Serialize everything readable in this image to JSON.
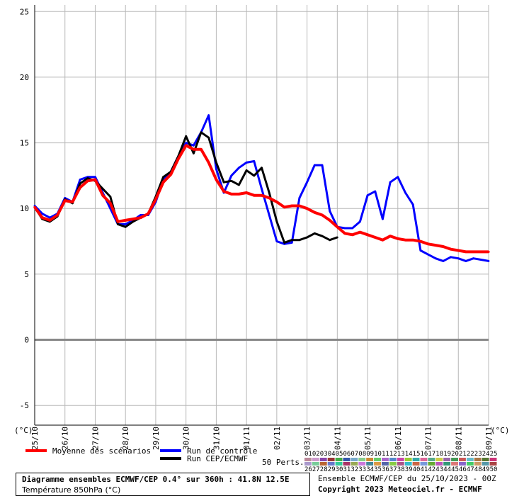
{
  "chart_data": {
    "type": "line",
    "title": "Diagramme ensembles ECMWF/CEP 0.4° sur 360h : 41.8N 12.5E",
    "subtitle": "Température 850hPa (°C)",
    "ylabel": "(°C)",
    "ylabel_right": "(°C)",
    "ylim": [
      -6.5,
      25.5
    ],
    "yticks": [
      25,
      20,
      15,
      10,
      5,
      0,
      -5
    ],
    "xlim": [
      0,
      360
    ],
    "xtick_labels": [
      "25/10",
      "26/10",
      "27/10",
      "28/10",
      "29/10",
      "30/10",
      "31/10",
      "01/11",
      "02/11",
      "03/11",
      "04/11",
      "05/11",
      "06/11",
      "07/11",
      "08/11",
      "09/11"
    ],
    "xtick_hours": [
      0,
      24,
      48,
      72,
      96,
      120,
      144,
      168,
      192,
      216,
      240,
      264,
      288,
      312,
      336,
      360
    ],
    "grid": true,
    "series": [
      {
        "name": "Moyenne des scénarios",
        "color": "#ff0000",
        "x": [
          0,
          6,
          12,
          18,
          24,
          30,
          36,
          42,
          48,
          54,
          60,
          66,
          72,
          78,
          84,
          90,
          96,
          102,
          108,
          114,
          120,
          126,
          132,
          138,
          144,
          150,
          156,
          162,
          168,
          174,
          180,
          186,
          192,
          198,
          204,
          210,
          216,
          222,
          228,
          234,
          240,
          246,
          252,
          258,
          264,
          270,
          276,
          282,
          288,
          294,
          300,
          306,
          312,
          318,
          324,
          330,
          336,
          342,
          348,
          354,
          360
        ],
        "y": [
          10.1,
          9.3,
          9.1,
          9.5,
          10.6,
          10.5,
          11.6,
          12.1,
          12.2,
          11.0,
          10.4,
          9.0,
          9.1,
          9.2,
          9.3,
          9.6,
          10.7,
          12.0,
          12.6,
          13.8,
          14.8,
          14.5,
          14.5,
          13.5,
          12.2,
          11.3,
          11.1,
          11.1,
          11.2,
          11.0,
          11.0,
          10.8,
          10.5,
          10.1,
          10.2,
          10.2,
          10.0,
          9.7,
          9.5,
          9.1,
          8.6,
          8.1,
          8.0,
          8.2,
          8.0,
          7.8,
          7.6,
          7.9,
          7.7,
          7.6,
          7.6,
          7.5,
          7.3,
          7.2,
          7.1,
          6.9,
          6.8,
          6.7,
          6.7,
          6.7,
          6.7
        ]
      },
      {
        "name": "Run de contrôle",
        "color": "#0000ff",
        "x": [
          0,
          6,
          12,
          18,
          24,
          30,
          36,
          42,
          48,
          54,
          60,
          66,
          72,
          78,
          84,
          90,
          96,
          102,
          108,
          114,
          120,
          126,
          132,
          138,
          144,
          150,
          156,
          162,
          168,
          174,
          180,
          186,
          192,
          198,
          204,
          210,
          216,
          222,
          228,
          234,
          240,
          246,
          252,
          258,
          264,
          270,
          276,
          282,
          288,
          294,
          300,
          306,
          312,
          318,
          324,
          330,
          336,
          342,
          348,
          354,
          360
        ],
        "y": [
          10.2,
          9.6,
          9.3,
          9.6,
          10.8,
          10.5,
          12.2,
          12.4,
          12.4,
          11.2,
          10.0,
          8.8,
          8.8,
          9.1,
          9.5,
          9.5,
          10.5,
          12.2,
          12.8,
          14.0,
          15.0,
          14.8,
          15.8,
          17.1,
          13.0,
          11.2,
          12.5,
          13.1,
          13.5,
          13.6,
          11.5,
          9.5,
          7.5,
          7.3,
          7.4,
          10.8,
          12.0,
          13.3,
          13.3,
          9.8,
          8.6,
          8.5,
          8.5,
          9.0,
          11.0,
          11.3,
          9.2,
          12.0,
          12.4,
          11.2,
          10.3,
          6.8,
          6.5,
          6.2,
          6.0,
          6.3,
          6.2,
          6.0,
          6.2,
          6.1,
          6.0
        ]
      },
      {
        "name": "Run CEP/ECMWF",
        "color": "#000000",
        "x": [
          0,
          6,
          12,
          18,
          24,
          30,
          36,
          42,
          48,
          54,
          60,
          66,
          72,
          78,
          84,
          90,
          96,
          102,
          108,
          114,
          120,
          126,
          132,
          138,
          144,
          150,
          156,
          162,
          168,
          174,
          180,
          186,
          192,
          198,
          204,
          210,
          216,
          222,
          228,
          234,
          240
        ],
        "y": [
          10.1,
          9.2,
          9.0,
          9.4,
          10.7,
          10.4,
          11.9,
          12.3,
          12.1,
          11.5,
          10.9,
          8.8,
          8.6,
          9.0,
          9.3,
          9.6,
          10.9,
          12.4,
          12.8,
          14.0,
          15.5,
          14.2,
          15.8,
          15.4,
          13.5,
          12.0,
          12.1,
          11.8,
          12.9,
          12.5,
          13.1,
          11.2,
          9.0,
          7.4,
          7.6,
          7.6,
          7.8,
          8.1,
          7.9,
          7.6,
          7.8
        ]
      }
    ],
    "perturbation_count": 50,
    "perturbation_label": "50 Perts.",
    "perturbation_ids_top": [
      "01",
      "02",
      "03",
      "04",
      "05",
      "06",
      "07",
      "08",
      "09",
      "10",
      "11",
      "12",
      "13",
      "14",
      "15",
      "16",
      "17",
      "18",
      "19",
      "20",
      "21",
      "22",
      "23",
      "24",
      "25"
    ],
    "perturbation_ids_bottom": [
      "26",
      "27",
      "28",
      "29",
      "30",
      "31",
      "32",
      "33",
      "34",
      "35",
      "36",
      "37",
      "38",
      "39",
      "40",
      "41",
      "42",
      "43",
      "44",
      "45",
      "46",
      "47",
      "48",
      "49",
      "50"
    ],
    "perturbation_colors": [
      "#bb8899",
      "#cc99cc",
      "#8844aa",
      "#993333",
      "#44aa44",
      "#3355aa",
      "#77aacc",
      "#88cc88",
      "#cc8833",
      "#66cc66",
      "#aa66cc",
      "#5588cc",
      "#cc44aa",
      "#99cc33",
      "#33aaaa",
      "#dd6699",
      "#55aa88",
      "#cccc44",
      "#9966aa",
      "#449955",
      "#cc5555",
      "#66bbcc",
      "#aa7744",
      "#557733",
      "#cc3377",
      "#aa99cc",
      "#77cc99",
      "#bb6633",
      "#6677cc",
      "#33cc99",
      "#aa3366",
      "#99aa55",
      "#cc77dd",
      "#448899",
      "#dd9944",
      "#5566aa",
      "#88cc44",
      "#aa5588",
      "#33bbcc",
      "#cc6644",
      "#7799dd",
      "#66aa33",
      "#bb55bb",
      "#339977",
      "#dd7777",
      "#8866cc",
      "#44cc66",
      "#cc9966",
      "#5599aa",
      "#aa4444"
    ]
  },
  "footer": {
    "title": "Diagramme ensembles ECMWF/CEP 0.4° sur 360h : 41.8N 12.5E",
    "subtitle": "Température 850hPa (°C)",
    "ensemble_info": "Ensemble ECMWF/CEP du 25/10/2023 - 00Z",
    "copyright": "Copyright 2023 Meteociel.fr - ECMWF"
  }
}
